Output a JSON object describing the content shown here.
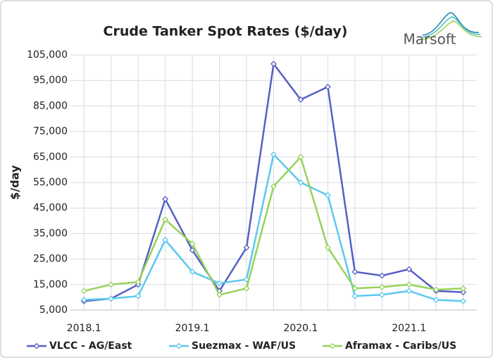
{
  "chart_data": {
    "type": "line",
    "title": "Crude Tanker Spot Rates ($/day)",
    "logo": "Marsoft",
    "y_label": "$/day",
    "categories": [
      "2018.1",
      null,
      null,
      null,
      "2019.1",
      null,
      null,
      null,
      "2020.1",
      null,
      null,
      null,
      "2021.1",
      null,
      null
    ],
    "series": [
      {
        "name": "VLCC - AG/East",
        "color": "#5560c4",
        "values": [
          8500,
          9500,
          15000,
          48500,
          28500,
          12500,
          29500,
          101500,
          87500,
          92500,
          20000,
          18500,
          21000,
          12500,
          12000
        ]
      },
      {
        "name": "Suezmax - WAF/US",
        "color": "#5bc8ee",
        "values": [
          9000,
          9500,
          10500,
          32500,
          20000,
          15500,
          17000,
          66000,
          55000,
          50000,
          10500,
          11000,
          12500,
          9000,
          8500
        ]
      },
      {
        "name": "Aframax - Caribs/US",
        "color": "#96d35a",
        "values": [
          12500,
          15000,
          16000,
          40500,
          31000,
          11000,
          13500,
          53500,
          65000,
          29500,
          13500,
          14000,
          15000,
          13000,
          13500
        ]
      }
    ],
    "ylim": [
      5000,
      105000
    ],
    "yticks": [
      {
        "value": 5000,
        "label": "5,000"
      },
      {
        "value": 15000,
        "label": "15,000"
      },
      {
        "value": 25000,
        "label": "25,000"
      },
      {
        "value": 35000,
        "label": "35,000"
      },
      {
        "value": 45000,
        "label": "45,000"
      },
      {
        "value": 55000,
        "label": "55,000"
      },
      {
        "value": 65000,
        "label": "65,000"
      },
      {
        "value": 75000,
        "label": "75,000"
      },
      {
        "value": 85000,
        "label": "85,000"
      },
      {
        "value": 95000,
        "label": "95,000"
      },
      {
        "value": 105000,
        "label": "105,000"
      }
    ],
    "grid": true,
    "legend": "bottom"
  }
}
